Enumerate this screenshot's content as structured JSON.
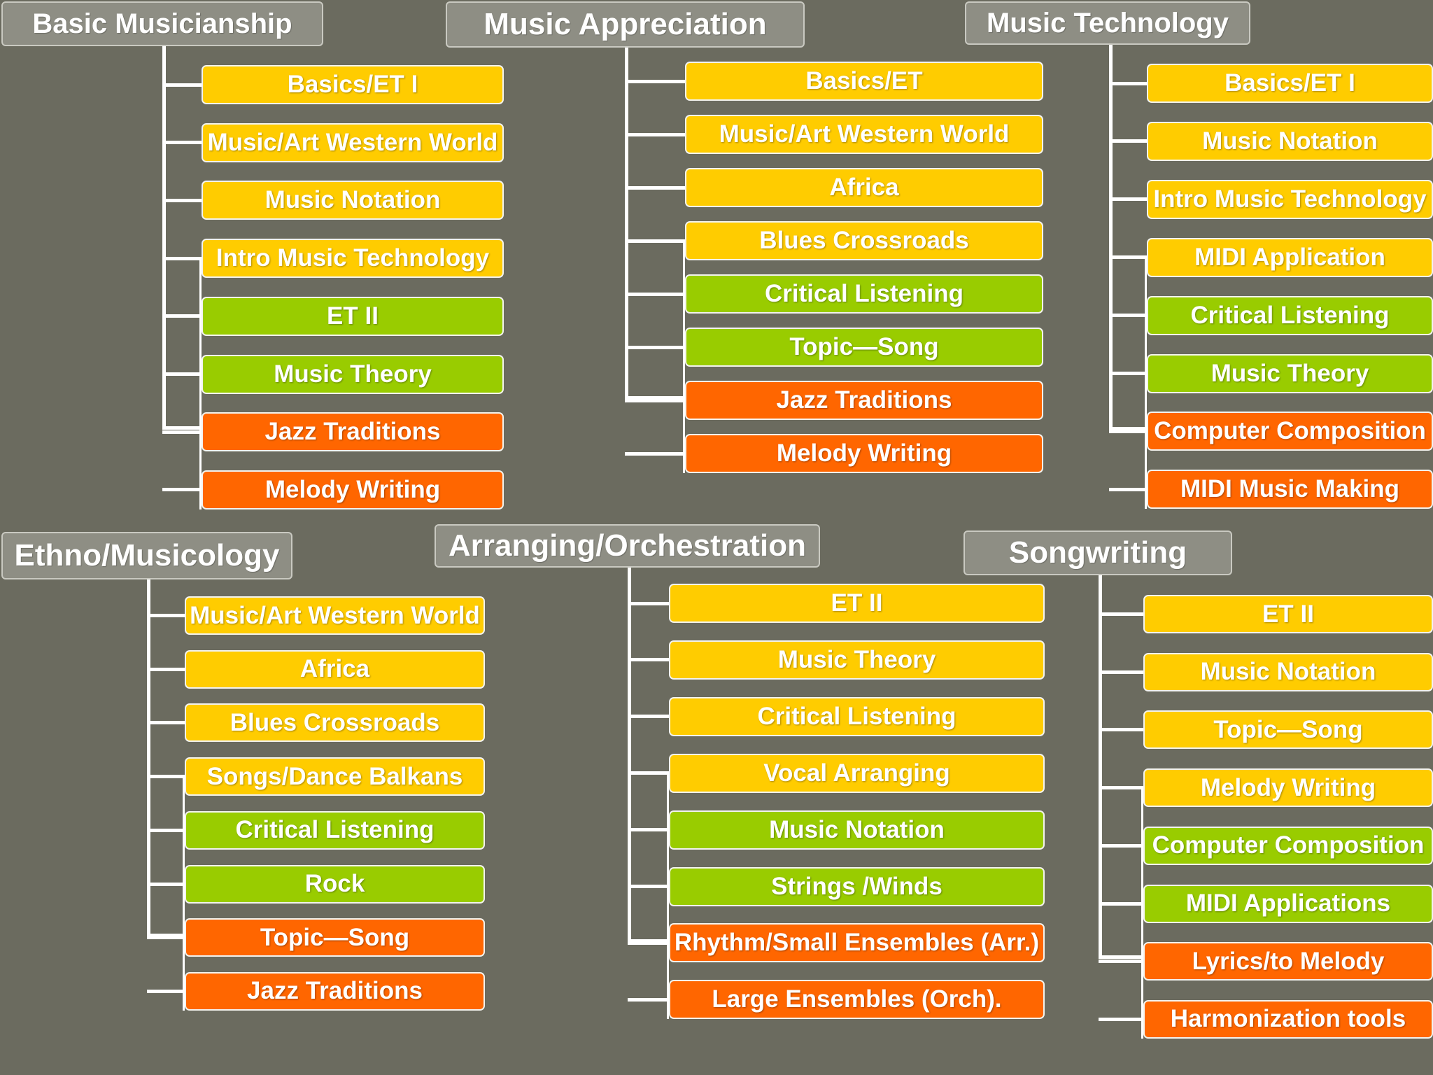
{
  "colors": {
    "background": "#6b6b5f",
    "header": "#8e8e84",
    "yellow": "#ffcc00",
    "green": "#99cc00",
    "orange": "#ff6600"
  },
  "groups": [
    {
      "title": "Basic Musicianship",
      "items": [
        {
          "label": "Basics/ET I",
          "color": "yellow"
        },
        {
          "label": "Music/Art Western World",
          "color": "yellow"
        },
        {
          "label": "Music Notation",
          "color": "yellow"
        },
        {
          "label": "Intro Music Technology",
          "color": "yellow"
        },
        {
          "label": "ET II",
          "color": "green"
        },
        {
          "label": "Music Theory",
          "color": "green"
        },
        {
          "label": "Jazz Traditions",
          "color": "orange"
        },
        {
          "label": "Melody Writing",
          "color": "orange"
        }
      ]
    },
    {
      "title": "Music Appreciation",
      "items": [
        {
          "label": "Basics/ET",
          "color": "yellow"
        },
        {
          "label": "Music/Art Western World",
          "color": "yellow"
        },
        {
          "label": "Africa",
          "color": "yellow"
        },
        {
          "label": "Blues Crossroads",
          "color": "yellow"
        },
        {
          "label": "Critical Listening",
          "color": "green"
        },
        {
          "label": "Topic—Song",
          "color": "green"
        },
        {
          "label": "Jazz Traditions",
          "color": "orange"
        },
        {
          "label": "Melody Writing",
          "color": "orange"
        }
      ]
    },
    {
      "title": "Music Technology",
      "items": [
        {
          "label": "Basics/ET I",
          "color": "yellow"
        },
        {
          "label": "Music Notation",
          "color": "yellow"
        },
        {
          "label": "Intro Music Technology",
          "color": "yellow"
        },
        {
          "label": "MIDI Application",
          "color": "yellow"
        },
        {
          "label": "Critical Listening",
          "color": "green"
        },
        {
          "label": "Music Theory",
          "color": "green"
        },
        {
          "label": "Computer Composition",
          "color": "orange"
        },
        {
          "label": "MIDI Music Making",
          "color": "orange"
        }
      ]
    },
    {
      "title": "Ethno/Musicology",
      "items": [
        {
          "label": "Music/Art Western World",
          "color": "yellow"
        },
        {
          "label": "Africa",
          "color": "yellow"
        },
        {
          "label": "Blues Crossroads",
          "color": "yellow"
        },
        {
          "label": "Songs/Dance Balkans",
          "color": "yellow"
        },
        {
          "label": "Critical  Listening",
          "color": "green"
        },
        {
          "label": "Rock",
          "color": "green"
        },
        {
          "label": "Topic—Song",
          "color": "orange"
        },
        {
          "label": "Jazz Traditions",
          "color": "orange"
        }
      ]
    },
    {
      "title": "Arranging/Orchestration",
      "items": [
        {
          "label": "ET II",
          "color": "yellow"
        },
        {
          "label": "Music Theory",
          "color": "yellow"
        },
        {
          "label": "Critical Listening",
          "color": "yellow"
        },
        {
          "label": "Vocal Arranging",
          "color": "yellow"
        },
        {
          "label": "Music Notation",
          "color": "green"
        },
        {
          "label": "Strings /Winds",
          "color": "green"
        },
        {
          "label": "Rhythm/Small Ensembles (Arr.)",
          "color": "orange"
        },
        {
          "label": "Large Ensembles (Orch).",
          "color": "orange"
        }
      ]
    },
    {
      "title": "Songwriting",
      "items": [
        {
          "label": "ET II",
          "color": "yellow"
        },
        {
          "label": "Music Notation",
          "color": "yellow"
        },
        {
          "label": "Topic—Song",
          "color": "yellow"
        },
        {
          "label": "Melody  Writing",
          "color": "yellow"
        },
        {
          "label": "Computer Composition",
          "color": "green"
        },
        {
          "label": "MIDI Applications",
          "color": "green"
        },
        {
          "label": "Lyrics/to Melody",
          "color": "orange"
        },
        {
          "label": "Harmonization tools",
          "color": "orange"
        }
      ]
    }
  ]
}
